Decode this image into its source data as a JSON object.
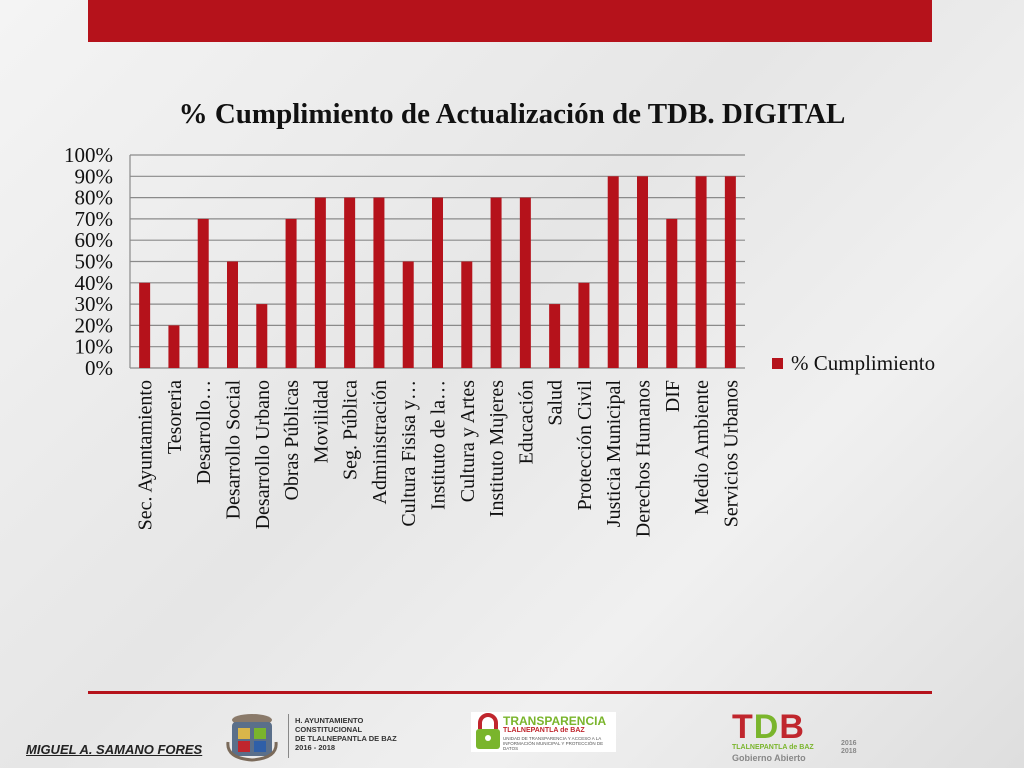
{
  "colors": {
    "accent": "#b5121b",
    "green": "#7ab52c"
  },
  "chart_data": {
    "type": "bar",
    "title": "% Cumplimiento de Actualización de TDB. DIGITAL",
    "categories": [
      "Sec. Ayuntamiento",
      "Tesoreria",
      "Desarrollo…",
      "Desarrollo Social",
      "Desarrollo Urbano",
      "Obras Públicas",
      "Movilidad",
      "Seg. Pública",
      "Administración",
      "Cultura Fisisa y…",
      "Instituto de la…",
      "Cultura y Artes",
      "Instituto Mujeres",
      "Educación",
      "Salud",
      "Protección Civil",
      "Justicia Municipal",
      "Derechos Humanos",
      "DIF",
      "Medio Ambiente",
      "Servicios Urbanos"
    ],
    "series": [
      {
        "name": "% Cumplimiento",
        "values": [
          0.4,
          0.2,
          0.7,
          0.5,
          0.3,
          0.7,
          0.8,
          0.8,
          0.8,
          0.5,
          0.8,
          0.5,
          0.8,
          0.8,
          0.3,
          0.4,
          0.9,
          0.9,
          0.7,
          0.9,
          0.9
        ]
      }
    ],
    "ylim": [
      0,
      1
    ],
    "yticks": [
      "0%",
      "10%",
      "20%",
      "30%",
      "40%",
      "50%",
      "60%",
      "70%",
      "80%",
      "90%",
      "100%"
    ],
    "grid": true,
    "legend": "right"
  },
  "footer": {
    "author": "MIGUEL A. SAMANO FORES",
    "ayuntamiento_lines": [
      "H. AYUNTAMIENTO",
      "CONSTITUCIONAL",
      "DE TLALNEPANTLA DE BAZ",
      "2016 - 2018"
    ],
    "transparencia_title": "TRANSPARENCIA",
    "transparencia_sub": "TLALNEPANTLA de BAZ",
    "transparencia_tiny": "UNIDAD DE TRANSPARENCIA Y ACCESO A LA INFORMACIÓN MUNICIPAL Y PROTECCIÓN DE DATOS",
    "tdb_letters": [
      "T",
      "D",
      "B"
    ],
    "tdb_sub": "TLALNEPANTLA de BAZ",
    "tdb_gobierno": "Gobierno Abierto",
    "tdb_years": [
      "2016",
      "2018"
    ]
  }
}
